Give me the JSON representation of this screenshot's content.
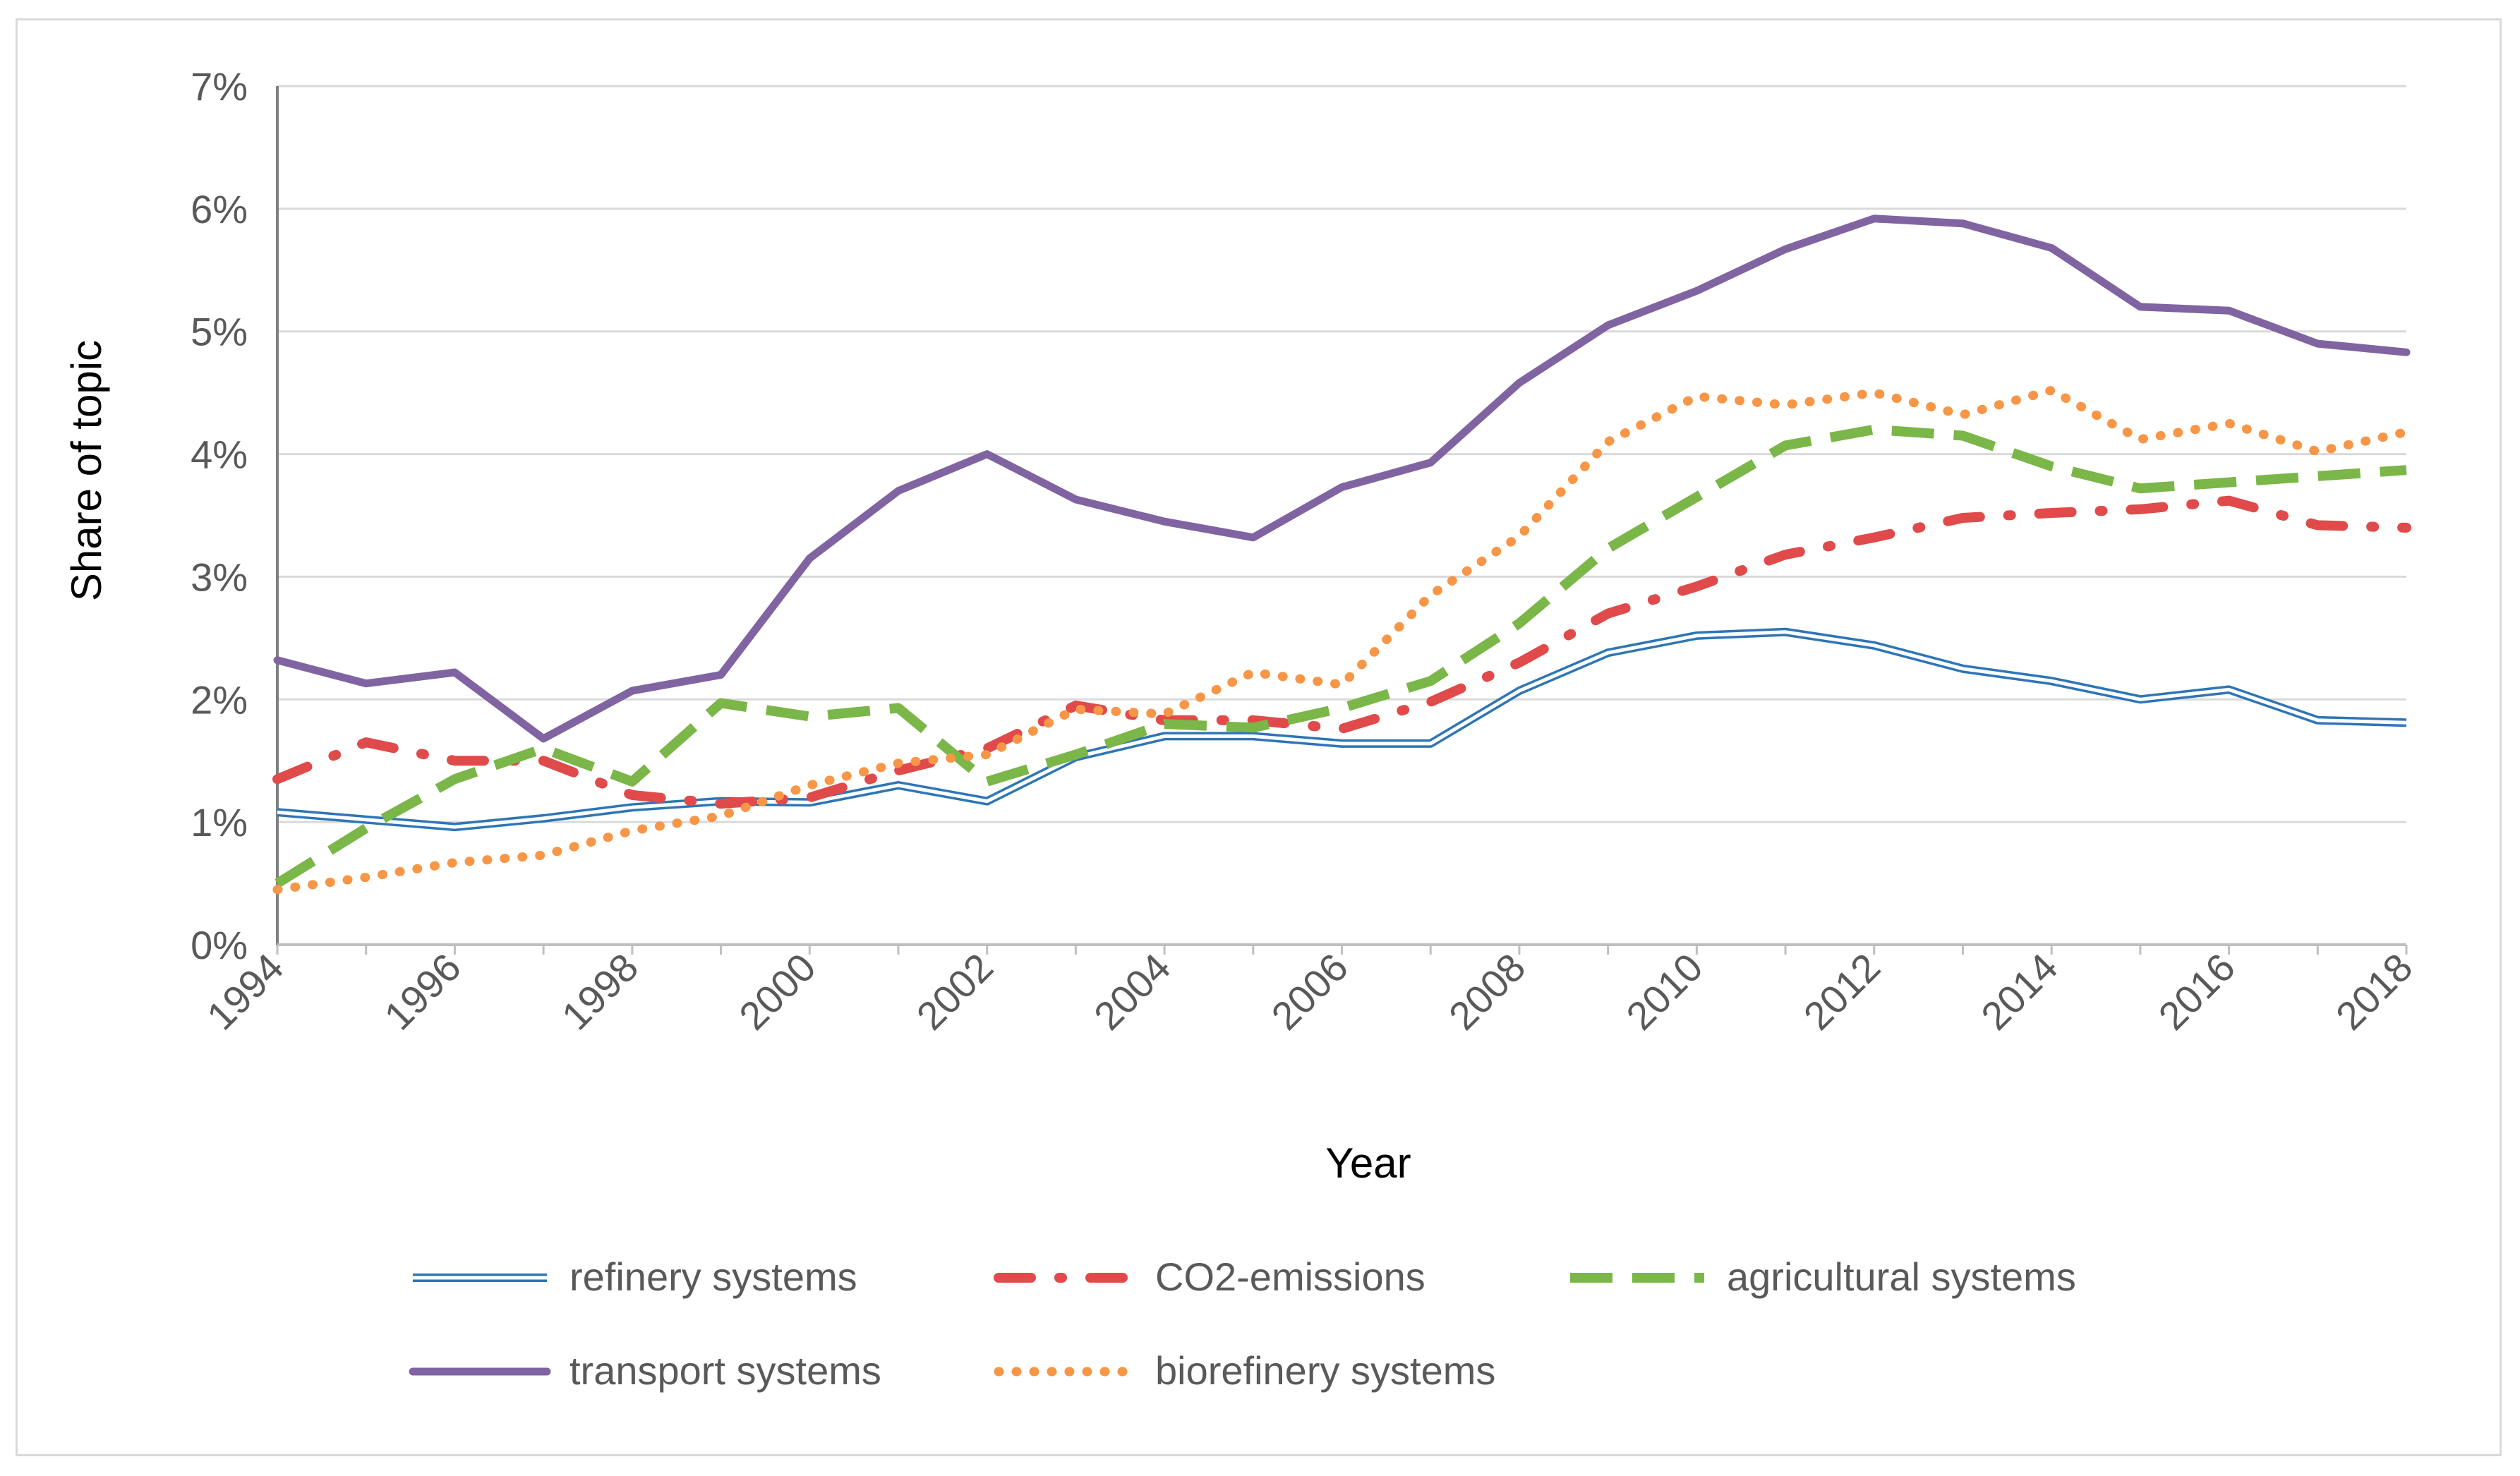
{
  "chart_data": {
    "type": "line",
    "title": "",
    "xlabel": "Year",
    "ylabel": "Share of topic",
    "xlim": [
      1994,
      2018
    ],
    "ylim": [
      0,
      7
    ],
    "x_ticks": [
      "1994",
      "1996",
      "1998",
      "2000",
      "2002",
      "2004",
      "2006",
      "2008",
      "2010",
      "2012",
      "2014",
      "2016",
      "2018"
    ],
    "y_ticks": [
      "0%",
      "1%",
      "2%",
      "3%",
      "4%",
      "5%",
      "6%",
      "7%"
    ],
    "grid": "horizontal",
    "legend_position": "bottom",
    "x": [
      1994,
      1995,
      1996,
      1997,
      1998,
      1999,
      2000,
      2001,
      2002,
      2003,
      2004,
      2005,
      2006,
      2007,
      2008,
      2009,
      2010,
      2011,
      2012,
      2013,
      2014,
      2015,
      2016,
      2017,
      2018
    ],
    "series": [
      {
        "name": "refinery systems",
        "color": "#2e75b6",
        "style": "double",
        "values": [
          1.08,
          1.02,
          0.96,
          1.03,
          1.12,
          1.17,
          1.16,
          1.3,
          1.17,
          1.53,
          1.7,
          1.7,
          1.64,
          1.64,
          2.07,
          2.38,
          2.52,
          2.55,
          2.44,
          2.25,
          2.15,
          2.0,
          2.08,
          1.83,
          1.81
        ]
      },
      {
        "name": "CO2-emissions",
        "color": "#e04a4a",
        "style": "dashdot",
        "values": [
          1.35,
          1.65,
          1.5,
          1.5,
          1.22,
          1.15,
          1.2,
          1.42,
          1.6,
          1.95,
          1.83,
          1.83,
          1.76,
          1.98,
          2.3,
          2.7,
          2.92,
          3.18,
          3.32,
          3.48,
          3.52,
          3.55,
          3.62,
          3.42,
          3.4
        ]
      },
      {
        "name": "agricultural systems",
        "color": "#7ab648",
        "style": "longdash",
        "values": [
          0.5,
          0.95,
          1.35,
          1.6,
          1.33,
          1.97,
          1.86,
          1.93,
          1.33,
          1.55,
          1.8,
          1.77,
          1.93,
          2.15,
          2.62,
          3.23,
          3.65,
          4.07,
          4.2,
          4.15,
          3.9,
          3.72,
          3.77,
          3.82,
          3.87
        ]
      },
      {
        "name": "transport systems",
        "color": "#8064a2",
        "style": "solid",
        "values": [
          2.32,
          2.13,
          2.22,
          1.68,
          2.07,
          2.2,
          3.15,
          3.7,
          4.0,
          3.63,
          3.45,
          3.32,
          3.73,
          3.93,
          4.58,
          5.05,
          5.33,
          5.67,
          5.92,
          5.88,
          5.68,
          5.2,
          5.17,
          4.9,
          4.83
        ]
      },
      {
        "name": "biorefinery systems",
        "color": "#f79646",
        "style": "dotted",
        "values": [
          0.45,
          0.55,
          0.67,
          0.73,
          0.93,
          1.05,
          1.3,
          1.48,
          1.55,
          1.92,
          1.88,
          2.22,
          2.12,
          2.85,
          3.33,
          4.1,
          4.47,
          4.4,
          4.5,
          4.32,
          4.52,
          4.12,
          4.25,
          4.02,
          4.18
        ]
      }
    ]
  }
}
